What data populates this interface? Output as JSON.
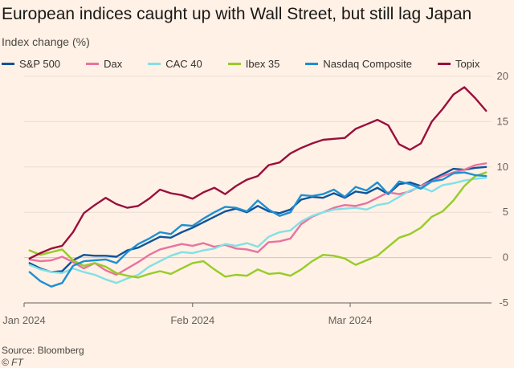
{
  "header": {
    "title": "European indices caught up with Wall Street, but still lag Japan",
    "subtitle": "Index change (%)"
  },
  "footer": {
    "source": "Source: Bloomberg",
    "credit": "© FT"
  },
  "chart_data": {
    "type": "line",
    "title": "European indices caught up with Wall Street, but still lag Japan",
    "ylabel": "Index change (%)",
    "xlabel": "",
    "ylim": [
      -5,
      20
    ],
    "yticks": [
      -5,
      0,
      5,
      10,
      15,
      20
    ],
    "xlim": [
      "2024-01-01",
      "2024-03-27"
    ],
    "xticks": [
      {
        "date": "2024-01-01",
        "label": "Jan 2024"
      },
      {
        "date": "2024-02-01",
        "label": "Feb 2024"
      },
      {
        "date": "2024-03-01",
        "label": "Mar 2024"
      }
    ],
    "grid": "horizontal",
    "legend_position": "top",
    "series": [
      {
        "name": "S&P 500",
        "color": "#0f5499",
        "points": [
          [
            "2024-01-02",
            -0.6
          ],
          [
            "2024-01-04",
            -1.2
          ],
          [
            "2024-01-06",
            -1.6
          ],
          [
            "2024-01-08",
            -1.5
          ],
          [
            "2024-01-10",
            -0.3
          ],
          [
            "2024-01-12",
            0.3
          ],
          [
            "2024-01-14",
            0.2
          ],
          [
            "2024-01-16",
            0.2
          ],
          [
            "2024-01-18",
            0.1
          ],
          [
            "2024-01-20",
            0.8
          ],
          [
            "2024-01-22",
            1.1
          ],
          [
            "2024-01-24",
            1.7
          ],
          [
            "2024-01-26",
            2.3
          ],
          [
            "2024-01-28",
            2.2
          ],
          [
            "2024-01-30",
            2.8
          ],
          [
            "2024-02-01",
            3.3
          ],
          [
            "2024-02-03",
            3.9
          ],
          [
            "2024-02-05",
            4.5
          ],
          [
            "2024-02-07",
            5.1
          ],
          [
            "2024-02-09",
            5.4
          ],
          [
            "2024-02-11",
            5.0
          ],
          [
            "2024-02-13",
            5.7
          ],
          [
            "2024-02-15",
            5.1
          ],
          [
            "2024-02-17",
            4.9
          ],
          [
            "2024-02-19",
            5.3
          ],
          [
            "2024-02-21",
            6.4
          ],
          [
            "2024-02-23",
            6.7
          ],
          [
            "2024-02-25",
            6.6
          ],
          [
            "2024-02-27",
            7.1
          ],
          [
            "2024-02-29",
            6.6
          ],
          [
            "2024-03-02",
            7.3
          ],
          [
            "2024-03-04",
            7.1
          ],
          [
            "2024-03-06",
            7.7
          ],
          [
            "2024-03-08",
            7.0
          ],
          [
            "2024-03-10",
            8.1
          ],
          [
            "2024-03-12",
            8.3
          ],
          [
            "2024-03-14",
            7.9
          ],
          [
            "2024-03-16",
            8.6
          ],
          [
            "2024-03-18",
            9.2
          ],
          [
            "2024-03-20",
            9.8
          ],
          [
            "2024-03-22",
            9.7
          ],
          [
            "2024-03-24",
            9.9
          ],
          [
            "2024-03-26",
            10.0
          ]
        ]
      },
      {
        "name": "Dax",
        "color": "#e8739f",
        "points": [
          [
            "2024-01-02",
            -0.2
          ],
          [
            "2024-01-04",
            -0.4
          ],
          [
            "2024-01-06",
            -0.3
          ],
          [
            "2024-01-08",
            0.1
          ],
          [
            "2024-01-10",
            -0.5
          ],
          [
            "2024-01-12",
            -1.2
          ],
          [
            "2024-01-14",
            -0.6
          ],
          [
            "2024-01-16",
            -1.4
          ],
          [
            "2024-01-18",
            -1.9
          ],
          [
            "2024-01-20",
            -1.2
          ],
          [
            "2024-01-22",
            -0.5
          ],
          [
            "2024-01-24",
            0.3
          ],
          [
            "2024-01-26",
            0.9
          ],
          [
            "2024-01-28",
            1.2
          ],
          [
            "2024-01-30",
            1.5
          ],
          [
            "2024-02-01",
            1.3
          ],
          [
            "2024-02-03",
            1.6
          ],
          [
            "2024-02-05",
            1.2
          ],
          [
            "2024-02-07",
            1.4
          ],
          [
            "2024-02-09",
            1.0
          ],
          [
            "2024-02-11",
            0.9
          ],
          [
            "2024-02-13",
            0.6
          ],
          [
            "2024-02-15",
            1.7
          ],
          [
            "2024-02-17",
            1.8
          ],
          [
            "2024-02-19",
            2.1
          ],
          [
            "2024-02-21",
            3.7
          ],
          [
            "2024-02-23",
            4.5
          ],
          [
            "2024-02-25",
            5.0
          ],
          [
            "2024-02-27",
            5.5
          ],
          [
            "2024-02-29",
            5.8
          ],
          [
            "2024-03-02",
            5.7
          ],
          [
            "2024-03-04",
            6.0
          ],
          [
            "2024-03-06",
            6.6
          ],
          [
            "2024-03-08",
            7.2
          ],
          [
            "2024-03-10",
            7.0
          ],
          [
            "2024-03-12",
            7.3
          ],
          [
            "2024-03-14",
            7.9
          ],
          [
            "2024-03-16",
            8.4
          ],
          [
            "2024-03-18",
            9.0
          ],
          [
            "2024-03-20",
            9.4
          ],
          [
            "2024-03-22",
            9.7
          ],
          [
            "2024-03-24",
            10.2
          ],
          [
            "2024-03-26",
            10.4
          ]
        ]
      },
      {
        "name": "CAC 40",
        "color": "#82e0e6",
        "points": [
          [
            "2024-01-02",
            -0.8
          ],
          [
            "2024-01-04",
            -1.3
          ],
          [
            "2024-01-06",
            -1.6
          ],
          [
            "2024-01-08",
            -1.7
          ],
          [
            "2024-01-10",
            -1.2
          ],
          [
            "2024-01-12",
            -1.6
          ],
          [
            "2024-01-14",
            -1.9
          ],
          [
            "2024-01-16",
            -2.4
          ],
          [
            "2024-01-18",
            -2.8
          ],
          [
            "2024-01-20",
            -2.3
          ],
          [
            "2024-01-22",
            -1.9
          ],
          [
            "2024-01-24",
            -1.0
          ],
          [
            "2024-01-26",
            -0.4
          ],
          [
            "2024-01-28",
            0.2
          ],
          [
            "2024-01-30",
            0.6
          ],
          [
            "2024-02-01",
            0.5
          ],
          [
            "2024-02-03",
            0.8
          ],
          [
            "2024-02-05",
            1.0
          ],
          [
            "2024-02-07",
            1.5
          ],
          [
            "2024-02-09",
            1.3
          ],
          [
            "2024-02-11",
            1.6
          ],
          [
            "2024-02-13",
            1.2
          ],
          [
            "2024-02-15",
            2.3
          ],
          [
            "2024-02-17",
            2.8
          ],
          [
            "2024-02-19",
            3.0
          ],
          [
            "2024-02-21",
            4.0
          ],
          [
            "2024-02-23",
            4.6
          ],
          [
            "2024-02-25",
            5.0
          ],
          [
            "2024-02-27",
            5.3
          ],
          [
            "2024-02-29",
            5.4
          ],
          [
            "2024-03-02",
            5.5
          ],
          [
            "2024-03-04",
            5.3
          ],
          [
            "2024-03-06",
            5.8
          ],
          [
            "2024-03-08",
            6.0
          ],
          [
            "2024-03-10",
            6.7
          ],
          [
            "2024-03-12",
            7.4
          ],
          [
            "2024-03-14",
            7.8
          ],
          [
            "2024-03-16",
            7.3
          ],
          [
            "2024-03-18",
            8.0
          ],
          [
            "2024-03-20",
            8.2
          ],
          [
            "2024-03-22",
            8.5
          ],
          [
            "2024-03-24",
            8.7
          ],
          [
            "2024-03-26",
            8.8
          ]
        ]
      },
      {
        "name": "Ibex 35",
        "color": "#96cc28",
        "points": [
          [
            "2024-01-02",
            0.8
          ],
          [
            "2024-01-04",
            0.3
          ],
          [
            "2024-01-06",
            0.6
          ],
          [
            "2024-01-08",
            0.9
          ],
          [
            "2024-01-10",
            -0.3
          ],
          [
            "2024-01-12",
            -0.9
          ],
          [
            "2024-01-14",
            -0.6
          ],
          [
            "2024-01-16",
            -1.0
          ],
          [
            "2024-01-18",
            -1.7
          ],
          [
            "2024-01-20",
            -2.0
          ],
          [
            "2024-01-22",
            -2.2
          ],
          [
            "2024-01-24",
            -1.8
          ],
          [
            "2024-01-26",
            -1.5
          ],
          [
            "2024-01-28",
            -1.8
          ],
          [
            "2024-01-30",
            -1.2
          ],
          [
            "2024-02-01",
            -0.6
          ],
          [
            "2024-02-03",
            -0.4
          ],
          [
            "2024-02-05",
            -1.3
          ],
          [
            "2024-02-07",
            -2.1
          ],
          [
            "2024-02-09",
            -1.9
          ],
          [
            "2024-02-11",
            -2.0
          ],
          [
            "2024-02-13",
            -1.3
          ],
          [
            "2024-02-15",
            -1.8
          ],
          [
            "2024-02-17",
            -1.7
          ],
          [
            "2024-02-19",
            -2.0
          ],
          [
            "2024-02-21",
            -1.3
          ],
          [
            "2024-02-23",
            -0.4
          ],
          [
            "2024-02-25",
            0.3
          ],
          [
            "2024-02-27",
            0.2
          ],
          [
            "2024-02-29",
            -0.1
          ],
          [
            "2024-03-02",
            -0.8
          ],
          [
            "2024-03-04",
            -0.3
          ],
          [
            "2024-03-06",
            0.2
          ],
          [
            "2024-03-08",
            1.2
          ],
          [
            "2024-03-10",
            2.2
          ],
          [
            "2024-03-12",
            2.6
          ],
          [
            "2024-03-14",
            3.3
          ],
          [
            "2024-03-16",
            4.5
          ],
          [
            "2024-03-18",
            5.1
          ],
          [
            "2024-03-20",
            6.3
          ],
          [
            "2024-03-22",
            7.9
          ],
          [
            "2024-03-24",
            9.0
          ],
          [
            "2024-03-26",
            9.4
          ]
        ]
      },
      {
        "name": "Nasdaq Composite",
        "color": "#1e8fd2",
        "points": [
          [
            "2024-01-02",
            -1.6
          ],
          [
            "2024-01-04",
            -2.6
          ],
          [
            "2024-01-06",
            -3.2
          ],
          [
            "2024-01-08",
            -2.8
          ],
          [
            "2024-01-10",
            -0.9
          ],
          [
            "2024-01-12",
            -0.4
          ],
          [
            "2024-01-14",
            -0.3
          ],
          [
            "2024-01-16",
            -0.2
          ],
          [
            "2024-01-18",
            -0.6
          ],
          [
            "2024-01-20",
            0.6
          ],
          [
            "2024-01-22",
            1.5
          ],
          [
            "2024-01-24",
            2.1
          ],
          [
            "2024-01-26",
            2.8
          ],
          [
            "2024-01-28",
            2.6
          ],
          [
            "2024-01-30",
            3.6
          ],
          [
            "2024-02-01",
            3.5
          ],
          [
            "2024-02-03",
            4.3
          ],
          [
            "2024-02-05",
            5.0
          ],
          [
            "2024-02-07",
            5.6
          ],
          [
            "2024-02-09",
            5.5
          ],
          [
            "2024-02-11",
            5.1
          ],
          [
            "2024-02-13",
            6.3
          ],
          [
            "2024-02-15",
            5.3
          ],
          [
            "2024-02-17",
            4.6
          ],
          [
            "2024-02-19",
            5.0
          ],
          [
            "2024-02-21",
            6.9
          ],
          [
            "2024-02-23",
            6.8
          ],
          [
            "2024-02-25",
            7.0
          ],
          [
            "2024-02-27",
            7.5
          ],
          [
            "2024-02-29",
            6.7
          ],
          [
            "2024-03-02",
            7.8
          ],
          [
            "2024-03-04",
            7.4
          ],
          [
            "2024-03-06",
            8.3
          ],
          [
            "2024-03-08",
            7.0
          ],
          [
            "2024-03-10",
            8.4
          ],
          [
            "2024-03-12",
            8.1
          ],
          [
            "2024-03-14",
            7.6
          ],
          [
            "2024-03-16",
            8.4
          ],
          [
            "2024-03-18",
            8.6
          ],
          [
            "2024-03-20",
            9.3
          ],
          [
            "2024-03-22",
            9.4
          ],
          [
            "2024-03-24",
            9.1
          ],
          [
            "2024-03-26",
            9.0
          ]
        ]
      },
      {
        "name": "Topix",
        "color": "#990f3d",
        "points": [
          [
            "2024-01-02",
            -0.1
          ],
          [
            "2024-01-04",
            0.5
          ],
          [
            "2024-01-06",
            1.0
          ],
          [
            "2024-01-08",
            1.3
          ],
          [
            "2024-01-10",
            2.8
          ],
          [
            "2024-01-12",
            4.9
          ],
          [
            "2024-01-14",
            5.8
          ],
          [
            "2024-01-16",
            6.6
          ],
          [
            "2024-01-18",
            5.9
          ],
          [
            "2024-01-20",
            5.5
          ],
          [
            "2024-01-22",
            5.7
          ],
          [
            "2024-01-24",
            6.5
          ],
          [
            "2024-01-26",
            7.5
          ],
          [
            "2024-01-28",
            7.1
          ],
          [
            "2024-01-30",
            6.9
          ],
          [
            "2024-02-01",
            6.5
          ],
          [
            "2024-02-03",
            7.2
          ],
          [
            "2024-02-05",
            7.7
          ],
          [
            "2024-02-07",
            7.0
          ],
          [
            "2024-02-09",
            7.9
          ],
          [
            "2024-02-11",
            8.6
          ],
          [
            "2024-02-13",
            9.0
          ],
          [
            "2024-02-15",
            10.2
          ],
          [
            "2024-02-17",
            10.5
          ],
          [
            "2024-02-19",
            11.5
          ],
          [
            "2024-02-21",
            12.1
          ],
          [
            "2024-02-23",
            12.6
          ],
          [
            "2024-02-25",
            13.0
          ],
          [
            "2024-02-27",
            13.1
          ],
          [
            "2024-02-29",
            13.2
          ],
          [
            "2024-03-02",
            14.2
          ],
          [
            "2024-03-04",
            14.7
          ],
          [
            "2024-03-06",
            15.2
          ],
          [
            "2024-03-08",
            14.6
          ],
          [
            "2024-03-10",
            12.5
          ],
          [
            "2024-03-12",
            11.9
          ],
          [
            "2024-03-14",
            12.6
          ],
          [
            "2024-03-16",
            15.0
          ],
          [
            "2024-03-18",
            16.4
          ],
          [
            "2024-03-20",
            18.0
          ],
          [
            "2024-03-22",
            18.8
          ],
          [
            "2024-03-24",
            17.6
          ],
          [
            "2024-03-26",
            16.2
          ]
        ]
      }
    ]
  }
}
